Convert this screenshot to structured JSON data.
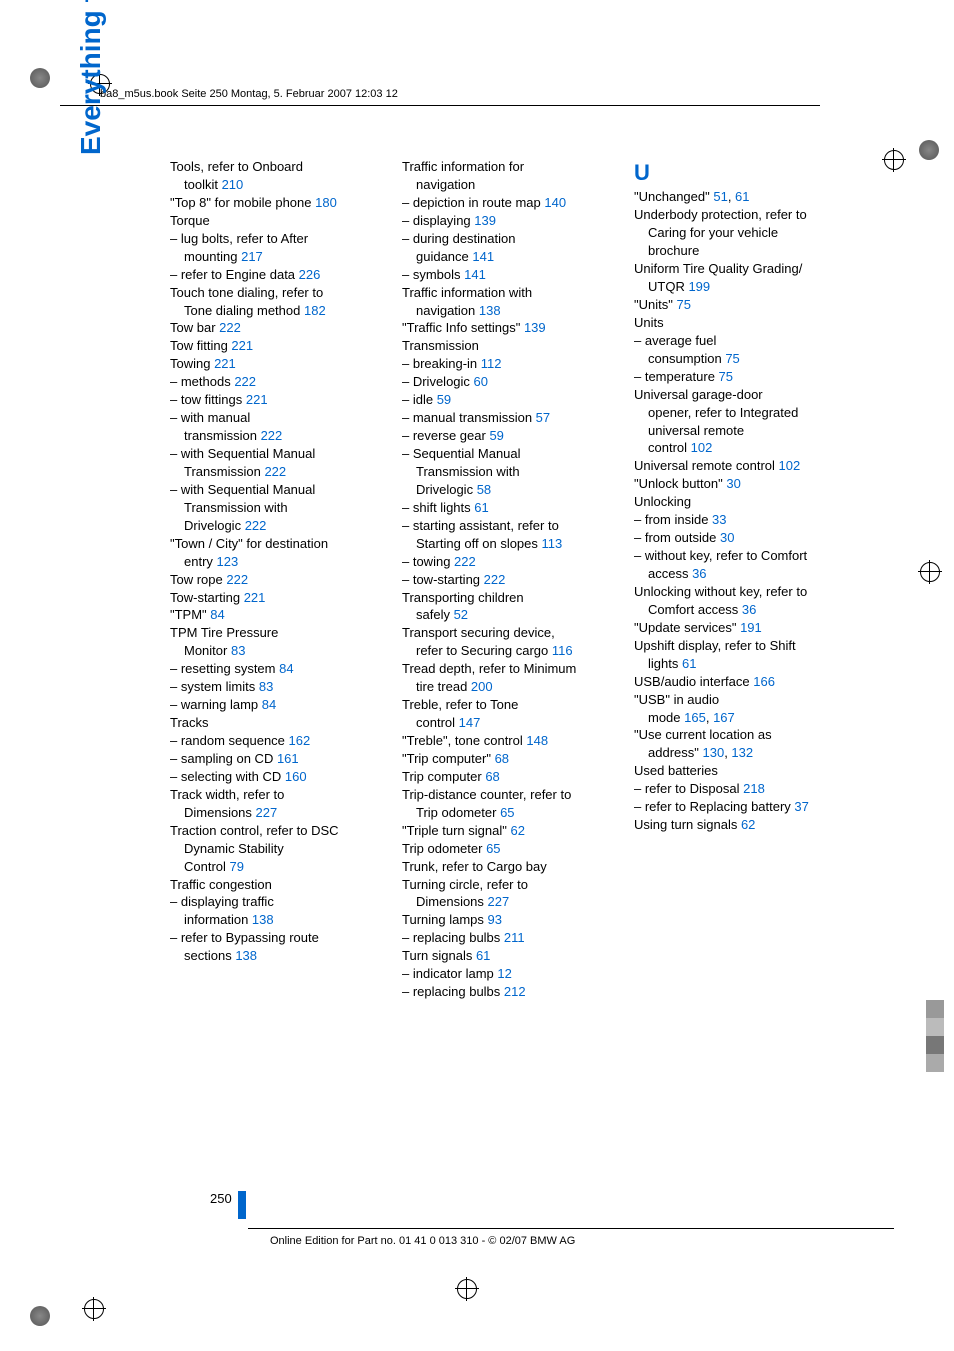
{
  "header": "ba8_m5us.book  Seite 250  Montag, 5. Februar 2007  12:03 12",
  "sideTitle": "Everything from A to Z",
  "pageNumber": "250",
  "footer": "Online Edition for Part no. 01 41 0 013 310 - © 02/07 BMW AG",
  "sectionU": "U",
  "col1": [
    {
      "t": "Tools, refer to Onboard"
    },
    {
      "t": "toolkit",
      "ind": 1,
      "l": "210"
    },
    {
      "t": "\"Top 8\" for mobile phone",
      "l": "180"
    },
    {
      "t": "Torque"
    },
    {
      "t": "– lug bolts, refer to After"
    },
    {
      "t": "mounting",
      "ind": 1,
      "l": "217"
    },
    {
      "t": "– refer to Engine data",
      "l": "226"
    },
    {
      "t": "Touch tone dialing, refer to"
    },
    {
      "t": "Tone dialing method",
      "ind": 1,
      "l": "182"
    },
    {
      "t": "Tow bar",
      "l": "222"
    },
    {
      "t": "Tow fitting",
      "l": "221"
    },
    {
      "t": "Towing",
      "l": "221"
    },
    {
      "t": "– methods",
      "l": "222"
    },
    {
      "t": "– tow fittings",
      "l": "221"
    },
    {
      "t": "– with manual"
    },
    {
      "t": "transmission",
      "ind": 1,
      "l": "222"
    },
    {
      "t": "– with Sequential Manual"
    },
    {
      "t": "Transmission",
      "ind": 1,
      "l": "222"
    },
    {
      "t": "– with Sequential Manual"
    },
    {
      "t": "Transmission with",
      "ind": 1
    },
    {
      "t": "Drivelogic",
      "ind": 1,
      "l": "222"
    },
    {
      "t": "\"Town / City\" for destination"
    },
    {
      "t": "entry",
      "ind": 1,
      "l": "123"
    },
    {
      "t": "Tow rope",
      "l": "222"
    },
    {
      "t": "Tow-starting",
      "l": "221"
    },
    {
      "t": "\"TPM\"",
      "l": "84"
    },
    {
      "t": "TPM Tire Pressure"
    },
    {
      "t": "Monitor",
      "ind": 1,
      "l": "83"
    },
    {
      "t": "– resetting system",
      "l": "84"
    },
    {
      "t": "– system limits",
      "l": "83"
    },
    {
      "t": "– warning lamp",
      "l": "84"
    },
    {
      "t": "Tracks"
    },
    {
      "t": "– random sequence",
      "l": "162"
    },
    {
      "t": "– sampling on CD",
      "l": "161"
    },
    {
      "t": "– selecting with CD",
      "l": "160"
    },
    {
      "t": "Track width, refer to"
    },
    {
      "t": "Dimensions",
      "ind": 1,
      "l": "227"
    },
    {
      "t": "Traction control, refer to DSC"
    },
    {
      "t": "Dynamic Stability",
      "ind": 1
    },
    {
      "t": "Control",
      "ind": 1,
      "l": "79"
    },
    {
      "t": "Traffic congestion"
    },
    {
      "t": "– displaying traffic"
    },
    {
      "t": "information",
      "ind": 1,
      "l": "138"
    },
    {
      "t": "– refer to Bypassing route"
    },
    {
      "t": "sections",
      "ind": 1,
      "l": "138"
    }
  ],
  "col2": [
    {
      "t": "Traffic information for"
    },
    {
      "t": "navigation",
      "ind": 1
    },
    {
      "t": "– depiction in route map",
      "l": "140"
    },
    {
      "t": "– displaying",
      "l": "139"
    },
    {
      "t": "– during destination"
    },
    {
      "t": "guidance",
      "ind": 1,
      "l": "141"
    },
    {
      "t": "– symbols",
      "l": "141"
    },
    {
      "t": "Traffic information with"
    },
    {
      "t": "navigation",
      "ind": 1,
      "l": "138"
    },
    {
      "t": "\"Traffic Info settings\"",
      "l": "139"
    },
    {
      "t": "Transmission"
    },
    {
      "t": "– breaking-in",
      "l": "112"
    },
    {
      "t": "– Drivelogic",
      "l": "60"
    },
    {
      "t": "– idle",
      "l": "59"
    },
    {
      "t": "– manual transmission",
      "l": "57"
    },
    {
      "t": "– reverse gear",
      "l": "59"
    },
    {
      "t": "– Sequential Manual"
    },
    {
      "t": "Transmission with",
      "ind": 1
    },
    {
      "t": "Drivelogic",
      "ind": 1,
      "l": "58"
    },
    {
      "t": "– shift lights",
      "l": "61"
    },
    {
      "t": "– starting assistant, refer to"
    },
    {
      "t": "Starting off on slopes",
      "ind": 1,
      "l": "113"
    },
    {
      "t": "– towing",
      "l": "222"
    },
    {
      "t": "– tow-starting",
      "l": "222"
    },
    {
      "t": "Transporting children"
    },
    {
      "t": "safely",
      "ind": 1,
      "l": "52"
    },
    {
      "t": "Transport securing device,"
    },
    {
      "t": "refer to Securing cargo",
      "ind": 1,
      "l": "116"
    },
    {
      "t": "Tread depth, refer to Minimum"
    },
    {
      "t": "tire tread",
      "ind": 1,
      "l": "200"
    },
    {
      "t": "Treble, refer to Tone"
    },
    {
      "t": "control",
      "ind": 1,
      "l": "147"
    },
    {
      "t": "\"Treble\", tone control",
      "l": "148"
    },
    {
      "t": "\"Trip computer\"",
      "l": "68"
    },
    {
      "t": "Trip computer",
      "l": "68"
    },
    {
      "t": "Trip-distance counter, refer to"
    },
    {
      "t": "Trip odometer",
      "ind": 1,
      "l": "65"
    },
    {
      "t": "\"Triple turn signal\"",
      "l": "62"
    },
    {
      "t": "Trip odometer",
      "l": "65"
    },
    {
      "t": "Trunk, refer to Cargo bay"
    },
    {
      "t": "Turning circle, refer to"
    },
    {
      "t": "Dimensions",
      "ind": 1,
      "l": "227"
    },
    {
      "t": "Turning lamps",
      "l": "93"
    },
    {
      "t": "– replacing bulbs",
      "l": "211"
    },
    {
      "t": "Turn signals",
      "l": "61"
    },
    {
      "t": "– indicator lamp",
      "l": "12"
    },
    {
      "t": "– replacing bulbs",
      "l": "212"
    }
  ],
  "col3": [
    {
      "t": "\"Unchanged\"",
      "l": "51",
      "l2": "61"
    },
    {
      "t": "Underbody protection, refer to"
    },
    {
      "t": "Caring for your vehicle",
      "ind": 1
    },
    {
      "t": "brochure",
      "ind": 1
    },
    {
      "t": "Uniform Tire Quality Grading/"
    },
    {
      "t": "UTQR",
      "ind": 1,
      "l": "199"
    },
    {
      "t": "\"Units\"",
      "l": "75"
    },
    {
      "t": "Units"
    },
    {
      "t": "– average fuel"
    },
    {
      "t": "consumption",
      "ind": 1,
      "l": "75"
    },
    {
      "t": "– temperature",
      "l": "75"
    },
    {
      "t": "Universal garage-door"
    },
    {
      "t": "opener, refer to Integrated",
      "ind": 1
    },
    {
      "t": "universal remote",
      "ind": 1
    },
    {
      "t": "control",
      "ind": 1,
      "l": "102"
    },
    {
      "t": "Universal remote control",
      "l": "102"
    },
    {
      "t": "\"Unlock button\"",
      "l": "30"
    },
    {
      "t": "Unlocking"
    },
    {
      "t": "– from inside",
      "l": "33"
    },
    {
      "t": "– from outside",
      "l": "30"
    },
    {
      "t": "– without key, refer to Comfort"
    },
    {
      "t": "access",
      "ind": 1,
      "l": "36"
    },
    {
      "t": "Unlocking without key, refer to"
    },
    {
      "t": "Comfort access",
      "ind": 1,
      "l": "36"
    },
    {
      "t": "\"Update services\"",
      "l": "191"
    },
    {
      "t": "Upshift display, refer to Shift"
    },
    {
      "t": "lights",
      "ind": 1,
      "l": "61"
    },
    {
      "t": "USB/audio interface",
      "l": "166"
    },
    {
      "t": "\"USB\" in audio"
    },
    {
      "t": "mode",
      "ind": 1,
      "l": "165",
      "l2": "167"
    },
    {
      "t": "\"Use current location as"
    },
    {
      "t": "address\"",
      "ind": 1,
      "l": "130",
      "l2": "132"
    },
    {
      "t": "Used batteries"
    },
    {
      "t": "– refer to Disposal",
      "l": "218"
    },
    {
      "t": "– refer to Replacing battery",
      "l": "37"
    },
    {
      "t": "Using turn signals",
      "l": "62"
    }
  ],
  "colors": {
    "gray": "#888888",
    "darkgray": "#555555"
  }
}
